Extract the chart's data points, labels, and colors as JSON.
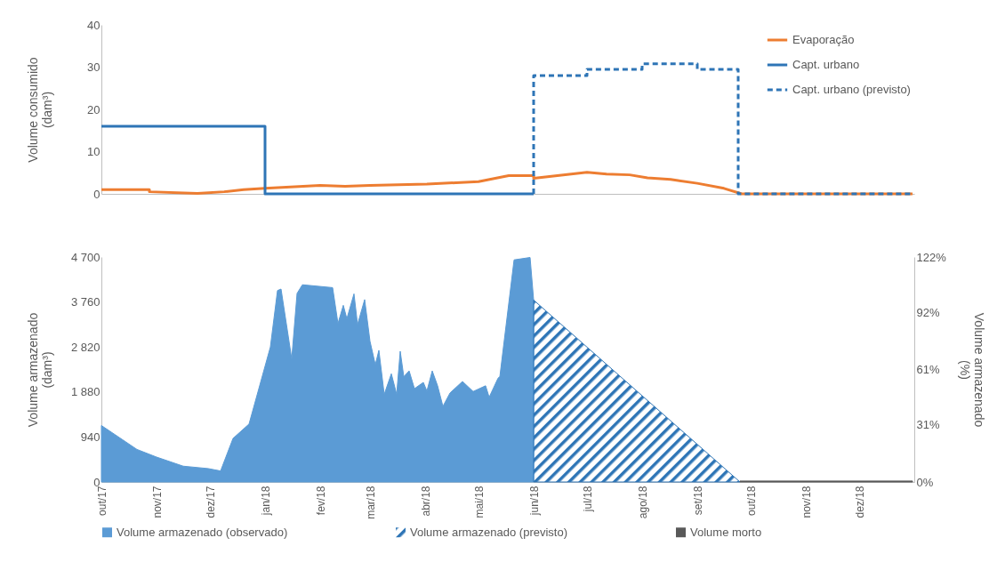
{
  "chart_data": [
    {
      "type": "line",
      "ylabel": "Volume consumido (dam³)",
      "xlim": [
        "2017-10-01",
        "2019-01-01"
      ],
      "ylim": [
        0,
        40
      ],
      "yticks": [
        0,
        10,
        20,
        30,
        40
      ],
      "tick_labels": "y",
      "legend": "top right",
      "series": [
        {
          "name": "Evaporação",
          "color": "#ed7d31",
          "x": [
            "2017-10-01",
            "2017-10-28",
            "2017-10-28",
            "2017-11-24",
            "2017-12-09",
            "2017-12-20",
            "2018-01-01",
            "2018-02-01",
            "2018-02-15",
            "2018-03-01",
            "2018-04-02",
            "2018-05-01",
            "2018-05-18",
            "2018-06-01",
            "2018-06-01",
            "2018-07-01",
            "2018-07-12",
            "2018-07-25",
            "2018-08-04",
            "2018-08-17",
            "2018-09-01",
            "2018-09-16",
            "2018-09-26",
            "2018-12-31"
          ],
          "values": [
            1.0,
            1.0,
            0.5,
            0.1,
            0.5,
            1.0,
            1.3,
            2.0,
            1.8,
            2.0,
            2.3,
            2.9,
            4.3,
            4.3,
            3.7,
            5.1,
            4.7,
            4.5,
            3.8,
            3.4,
            2.5,
            1.3,
            0,
            0
          ]
        },
        {
          "name": "Capt. urbano",
          "color": "#2e75b6",
          "x": [
            "2017-10-01",
            "2018-01-01",
            "2018-01-01",
            "2018-06-01"
          ],
          "values": [
            16,
            16,
            0,
            0
          ]
        },
        {
          "name": "Capt. urbano (previsto)",
          "color": "#2e75b6",
          "line_style": "dashed",
          "x": [
            "2018-06-01",
            "2018-06-01",
            "2018-07-01",
            "2018-07-01",
            "2018-08-01",
            "2018-08-01",
            "2018-09-01",
            "2018-09-01",
            "2018-09-24",
            "2018-09-24",
            "2018-12-31"
          ],
          "values": [
            0,
            28,
            28,
            29.5,
            29.5,
            30.8,
            30.8,
            29.5,
            29.5,
            0,
            0
          ]
        }
      ]
    },
    {
      "type": "area",
      "ylabel": "Volume armazenado (dam³)",
      "y2label": "Volume armazenado (%)",
      "xlim": [
        "2017-10-01",
        "2019-01-01"
      ],
      "xticks": [
        {
          "value": "2017-10-01",
          "label": "out/17"
        },
        {
          "value": "2017-11-01",
          "label": "nov/17"
        },
        {
          "value": "2017-12-01",
          "label": "dez/17"
        },
        {
          "value": "2018-01-01",
          "label": "jan/18"
        },
        {
          "value": "2018-02-01",
          "label": "fev/18"
        },
        {
          "value": "2018-03-01",
          "label": "mar/18"
        },
        {
          "value": "2018-04-01",
          "label": "abr/18"
        },
        {
          "value": "2018-05-01",
          "label": "mai/18"
        },
        {
          "value": "2018-06-01",
          "label": "jun/18"
        },
        {
          "value": "2018-07-01",
          "label": "jul/18"
        },
        {
          "value": "2018-08-01",
          "label": "ago/18"
        },
        {
          "value": "2018-09-01",
          "label": "set/18"
        },
        {
          "value": "2018-10-01",
          "label": "out/18"
        },
        {
          "value": "2018-11-01",
          "label": "nov/18"
        },
        {
          "value": "2018-12-01",
          "label": "dez/18"
        }
      ],
      "ylim": [
        0,
        4700
      ],
      "yticks": [
        0,
        940,
        {
          "value": 1880,
          "label": "1 880"
        },
        {
          "value": 2820,
          "label": "2 820"
        },
        {
          "value": 3760,
          "label": "3 760"
        },
        {
          "value": 4700,
          "label": "4 700"
        }
      ],
      "y2lim": [
        0,
        122
      ],
      "y2ticks": [
        {
          "value": 0,
          "label": "0%"
        },
        {
          "value": 31,
          "label": "31%"
        },
        {
          "value": 61,
          "label": "61%"
        },
        {
          "value": 92,
          "label": "92%"
        },
        {
          "value": 122,
          "label": "122%"
        }
      ],
      "legend": "bottom",
      "series": [
        {
          "name": "Volume armazenado (observado)",
          "color": "#5b9bd5",
          "x": [
            "2017-10-01",
            "2017-10-21",
            "2017-11-01",
            "2017-11-16",
            "2017-11-30",
            "2017-12-07",
            "2017-12-14",
            "2017-12-23",
            "2018-01-04",
            "2018-01-08",
            "2018-01-10",
            "2018-01-16",
            "2018-01-19",
            "2018-01-22",
            "2018-02-08",
            "2018-02-11",
            "2018-02-14",
            "2018-02-16",
            "2018-02-20",
            "2018-02-22",
            "2018-02-26",
            "2018-03-01",
            "2018-03-04",
            "2018-03-06",
            "2018-03-09",
            "2018-03-13",
            "2018-03-16",
            "2018-03-18",
            "2018-03-20",
            "2018-03-23",
            "2018-03-26",
            "2018-03-31",
            "2018-04-02",
            "2018-04-05",
            "2018-04-08",
            "2018-04-11",
            "2018-04-15",
            "2018-04-22",
            "2018-04-28",
            "2018-05-05",
            "2018-05-07",
            "2018-05-12",
            "2018-05-13",
            "2018-05-21",
            "2018-05-30",
            "2018-06-01"
          ],
          "values": [
            1180,
            680,
            520,
            330,
            280,
            230,
            910,
            1210,
            2820,
            4000,
            4030,
            2570,
            3940,
            4120,
            4060,
            3310,
            3690,
            3410,
            3930,
            3290,
            3810,
            2940,
            2450,
            2750,
            1830,
            2260,
            1830,
            2730,
            2200,
            2320,
            1950,
            2080,
            1900,
            2320,
            2010,
            1580,
            1860,
            2100,
            1890,
            2010,
            1770,
            2170,
            2200,
            4640,
            4690,
            3800
          ]
        },
        {
          "name": "Volume armazenado (previsto)",
          "color": "#2e75b6",
          "line_style": "dashed",
          "x": [
            "2018-06-01",
            "2018-09-25"
          ],
          "values": [
            3800,
            0
          ]
        },
        {
          "name": "Volume morto",
          "color": "#595959",
          "x": [
            "2018-09-25",
            "2018-12-31"
          ],
          "values": [
            20,
            20
          ]
        }
      ]
    }
  ]
}
